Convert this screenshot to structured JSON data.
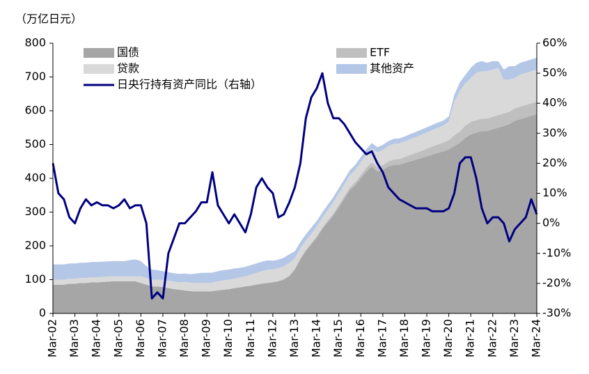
{
  "chart_data": {
    "type": "area",
    "stacked": true,
    "y_label": "（万亿日元）",
    "categories": [
      "Mar-02",
      null,
      null,
      null,
      "Mar-03",
      null,
      null,
      null,
      "Mar-04",
      null,
      null,
      null,
      "Mar-05",
      null,
      null,
      null,
      "Mar-06",
      null,
      null,
      null,
      "Mar-07",
      null,
      null,
      null,
      "Mar-08",
      null,
      null,
      null,
      "Mar-09",
      null,
      null,
      null,
      "Mar-10",
      null,
      null,
      null,
      "Mar-11",
      null,
      null,
      null,
      "Mar-12",
      null,
      null,
      null,
      "Mar-13",
      null,
      null,
      null,
      "Mar-14",
      null,
      null,
      null,
      "Mar-15",
      null,
      null,
      null,
      "Mar-16",
      null,
      null,
      null,
      "Mar-17",
      null,
      null,
      null,
      "Mar-18",
      null,
      null,
      null,
      "Mar-19",
      null,
      null,
      null,
      "Mar-20",
      null,
      null,
      null,
      "Mar-21",
      null,
      null,
      null,
      "Mar-22",
      null,
      null,
      null,
      "Mar-23",
      null,
      null,
      null,
      "Mar-24"
    ],
    "series": [
      {
        "name": "国债",
        "color": "#a6a6a6",
        "values": [
          85,
          85,
          85,
          88,
          88,
          90,
          90,
          92,
          92,
          93,
          94,
          95,
          95,
          95,
          95,
          95,
          90,
          85,
          80,
          80,
          78,
          75,
          72,
          70,
          68,
          66,
          65,
          65,
          65,
          66,
          68,
          70,
          72,
          75,
          77,
          80,
          82,
          85,
          88,
          90,
          92,
          95,
          100,
          110,
          130,
          160,
          185,
          205,
          225,
          250,
          270,
          290,
          315,
          340,
          365,
          380,
          400,
          420,
          435,
          420,
          425,
          435,
          440,
          440,
          445,
          450,
          455,
          460,
          465,
          470,
          475,
          480,
          485,
          495,
          505,
          520,
          530,
          535,
          540,
          540,
          545,
          550,
          555,
          560,
          570,
          575,
          580,
          585,
          590
        ]
      },
      {
        "name": "ETF",
        "color": "#bfbfbf",
        "values": [
          0,
          0,
          0,
          0,
          0,
          0,
          0,
          0,
          0,
          0,
          0,
          0,
          0,
          0,
          0,
          0,
          0,
          0,
          0,
          0,
          0,
          0,
          0,
          0,
          0,
          0,
          0,
          0,
          0,
          0,
          0,
          0,
          0,
          0,
          0,
          0,
          1,
          1,
          1,
          1,
          1,
          1,
          2,
          2,
          2,
          3,
          3,
          3,
          4,
          4,
          5,
          5,
          6,
          7,
          8,
          9,
          10,
          11,
          12,
          13,
          14,
          15,
          16,
          17,
          18,
          19,
          20,
          21,
          23,
          24,
          25,
          26,
          28,
          32,
          34,
          36,
          37,
          37,
          37,
          37,
          37,
          37,
          37,
          37,
          37,
          37,
          37,
          37,
          37
        ]
      },
      {
        "name": "贷款",
        "color": "#d9d9d9",
        "values": [
          15,
          15,
          15,
          15,
          15,
          15,
          15,
          15,
          15,
          15,
          15,
          15,
          15,
          15,
          15,
          15,
          20,
          20,
          20,
          20,
          22,
          22,
          22,
          22,
          25,
          25,
          25,
          25,
          25,
          25,
          27,
          28,
          28,
          28,
          30,
          30,
          32,
          34,
          36,
          38,
          38,
          38,
          38,
          38,
          32,
          30,
          28,
          28,
          30,
          30,
          32,
          34,
          35,
          35,
          36,
          36,
          38,
          40,
          42,
          44,
          45,
          45,
          46,
          46,
          46,
          47,
          47,
          48,
          48,
          49,
          50,
          50,
          55,
          100,
          120,
          125,
          130,
          140,
          140,
          140,
          140,
          140,
          100,
          95,
          90,
          95,
          95,
          95,
          95
        ]
      },
      {
        "name": "其他资产",
        "color": "#b4c7e7",
        "values": [
          45,
          45,
          45,
          45,
          45,
          45,
          45,
          45,
          45,
          45,
          45,
          45,
          45,
          45,
          48,
          50,
          45,
          35,
          30,
          28,
          25,
          25,
          25,
          25,
          25,
          25,
          28,
          30,
          30,
          30,
          30,
          30,
          30,
          30,
          28,
          28,
          28,
          28,
          28,
          28,
          25,
          25,
          25,
          25,
          20,
          18,
          18,
          18,
          15,
          15,
          15,
          15,
          15,
          15,
          15,
          15,
          15,
          15,
          15,
          15,
          15,
          15,
          15,
          15,
          15,
          15,
          15,
          15,
          15,
          15,
          15,
          15,
          15,
          20,
          25,
          25,
          30,
          30,
          30,
          25,
          25,
          20,
          30,
          40,
          35,
          35,
          35,
          35,
          35
        ]
      },
      {
        "name": "日央行持有资产同比（右轴）",
        "type": "line",
        "axis": "y2",
        "color": "#000080",
        "values": [
          20,
          10,
          8,
          2,
          0,
          5,
          8,
          6,
          7,
          6,
          6,
          5,
          6,
          8,
          5,
          6,
          6,
          0,
          -25,
          -23,
          -25,
          -10,
          -5,
          0,
          0,
          2,
          4,
          7,
          7,
          17,
          6,
          3,
          0,
          3,
          0,
          -3,
          3,
          12,
          15,
          12,
          10,
          2,
          3,
          7,
          12,
          20,
          35,
          42,
          45,
          50,
          40,
          35,
          35,
          33,
          30,
          27,
          25,
          23,
          24,
          20,
          17,
          12,
          10,
          8,
          7,
          6,
          5,
          5,
          5,
          4,
          4,
          4,
          5,
          10,
          20,
          22,
          22,
          15,
          5,
          0,
          2,
          2,
          0,
          -6,
          -2,
          0,
          2,
          8,
          3
        ]
      }
    ],
    "ylim": [
      0,
      800
    ],
    "yticks": [
      0,
      100,
      200,
      300,
      400,
      500,
      600,
      700,
      800
    ],
    "y2lim": [
      -30,
      60
    ],
    "y2ticks": [
      {
        "value": -30,
        "label": "-30%"
      },
      {
        "value": -20,
        "label": "-20%"
      },
      {
        "value": -10,
        "label": "-10%"
      },
      {
        "value": 0,
        "label": "0%"
      },
      {
        "value": 10,
        "label": "10%"
      },
      {
        "value": 20,
        "label": "20%"
      },
      {
        "value": 30,
        "label": "30%"
      },
      {
        "value": 40,
        "label": "40%"
      },
      {
        "value": 50,
        "label": "50%"
      },
      {
        "value": 60,
        "label": "60%"
      }
    ]
  }
}
